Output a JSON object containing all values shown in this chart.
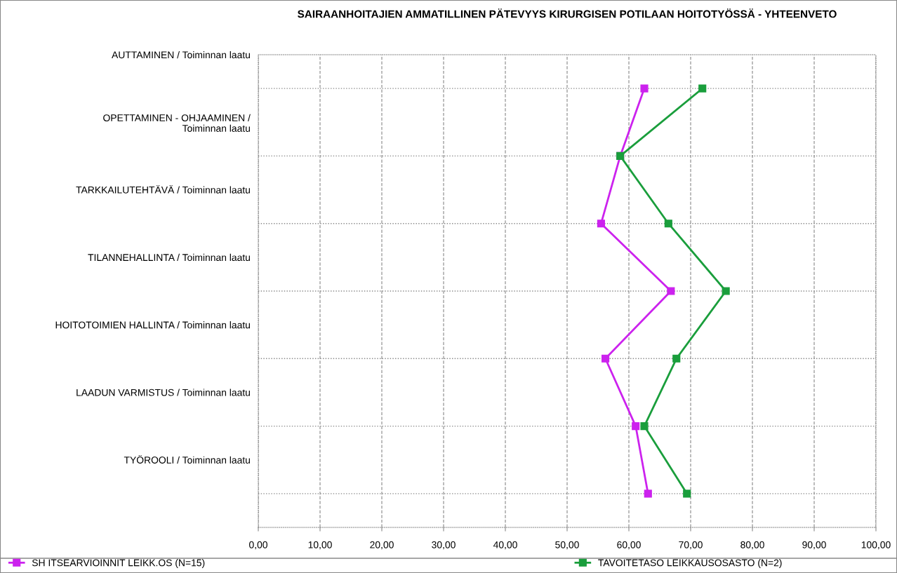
{
  "chart_data": {
    "type": "line",
    "orientation": "horizontal",
    "title": "SAIRAANHOITAJIEN AMMATILLINEN PÄTEVYYS KIRURGISEN POTILAAN HOITOTYÖSSÄ - YHTEENVETO",
    "categories": [
      "AUTTAMINEN / Toiminnan laatu",
      "OPETTAMINEN - OHJAAMINEN /\nToiminnan laatu",
      "TARKKAILUTEHTÄVÄ / Toiminnan laatu",
      "TILANNEHALLINTA / Toiminnan laatu",
      "HOITOTOIMIEN HALLINTA / Toiminnan laatu",
      "LAADUN VARMISTUS / Toiminnan laatu",
      "TYÖROOLI / Toiminnan laatu"
    ],
    "series": [
      {
        "name": "SH ITSEARVIOINNIT LEIKK.OS (N=15)",
        "color": "#cc22ee",
        "values": [
          62.5,
          58.6,
          55.5,
          66.8,
          56.2,
          61.1,
          63.1
        ]
      },
      {
        "name": "TAVOITETASO LEIKKAUSOSASTO (N=2)",
        "color": "#1a9e3c",
        "values": [
          71.9,
          58.6,
          66.4,
          75.7,
          67.7,
          62.5,
          69.4
        ]
      }
    ],
    "xlim": [
      0,
      100
    ],
    "xticks": [
      {
        "value": 0,
        "label": "0,00"
      },
      {
        "value": 10,
        "label": "10,00"
      },
      {
        "value": 20,
        "label": "20,00"
      },
      {
        "value": 30,
        "label": "30,00"
      },
      {
        "value": 40,
        "label": "40,00"
      },
      {
        "value": 50,
        "label": "50,00"
      },
      {
        "value": 60,
        "label": "60,00"
      },
      {
        "value": 70,
        "label": "70,00"
      },
      {
        "value": 80,
        "label": "80,00"
      },
      {
        "value": 90,
        "label": "90,00"
      },
      {
        "value": 100,
        "label": "100,00"
      }
    ],
    "grid": true,
    "legend": "bottom",
    "marker": "square",
    "line_style": "solid"
  }
}
